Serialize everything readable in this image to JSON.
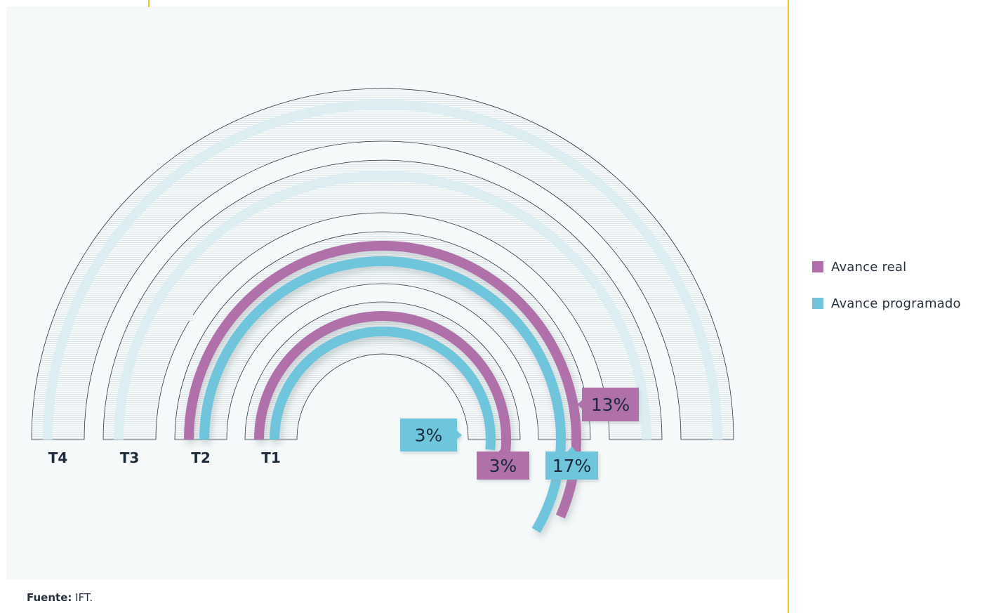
{
  "chart_data": {
    "type": "radial-bar",
    "max_value": 100,
    "rings": [
      {
        "label": "T4",
        "real": null,
        "programado": null
      },
      {
        "label": "T3",
        "real": null,
        "programado": null
      },
      {
        "label": "T2",
        "real": 13,
        "programado": 17
      },
      {
        "label": "T1",
        "real": 3,
        "programado": 3
      }
    ],
    "data_labels": {
      "t2_real": "13%",
      "t2_programado": "17%",
      "t1_real": "3%",
      "t1_programado": "3%"
    },
    "series": [
      {
        "name": "Avance real",
        "color": "#b06faa"
      },
      {
        "name": "Avance programado",
        "color": "#6ec5dc"
      }
    ],
    "legend_position": "right"
  },
  "colors": {
    "panel_background": "#f5f9f9",
    "rail": "#ddeef3",
    "accent_line": "#f2c21b",
    "text_dark": "#1f2b3a"
  },
  "source": {
    "label": "Fuente:",
    "value": "IFT."
  }
}
